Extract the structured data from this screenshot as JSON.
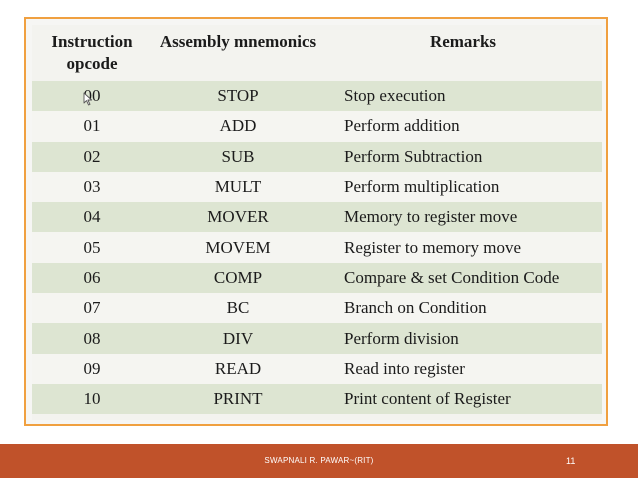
{
  "table": {
    "headers": {
      "opcode_line1": "Instruction",
      "opcode_line2": "opcode",
      "mnemonic": "Assembly mnemonics",
      "remarks": "Remarks"
    },
    "rows": [
      {
        "opcode": "00",
        "mnemonic": "STOP",
        "remarks": "Stop execution"
      },
      {
        "opcode": "01",
        "mnemonic": "ADD",
        "remarks": "Perform addition"
      },
      {
        "opcode": "02",
        "mnemonic": "SUB",
        "remarks": "Perform Subtraction"
      },
      {
        "opcode": "03",
        "mnemonic": "MULT",
        "remarks": "Perform multiplication"
      },
      {
        "opcode": "04",
        "mnemonic": "MOVER",
        "remarks": "Memory to register move"
      },
      {
        "opcode": "05",
        "mnemonic": "MOVEM",
        "remarks": "Register to memory move"
      },
      {
        "opcode": "06",
        "mnemonic": "COMP",
        "remarks": "Compare & set Condition Code"
      },
      {
        "opcode": "07",
        "mnemonic": "BC",
        "remarks": "Branch on Condition"
      },
      {
        "opcode": "08",
        "mnemonic": "DIV",
        "remarks": "Perform division"
      },
      {
        "opcode": "09",
        "mnemonic": "READ",
        "remarks": "Read into register"
      },
      {
        "opcode": "10",
        "mnemonic": "PRINT",
        "remarks": "Print content of Register"
      }
    ]
  },
  "footer": {
    "author": "SWAPNALI R. PAWAR~(RIT)",
    "page_number": "11"
  },
  "colors": {
    "frame_border": "#f0a040",
    "row_shade": "#dde5d2",
    "footer_bar": "#c0522a"
  },
  "icons": {
    "cursor": "mouse-pointer-icon"
  }
}
